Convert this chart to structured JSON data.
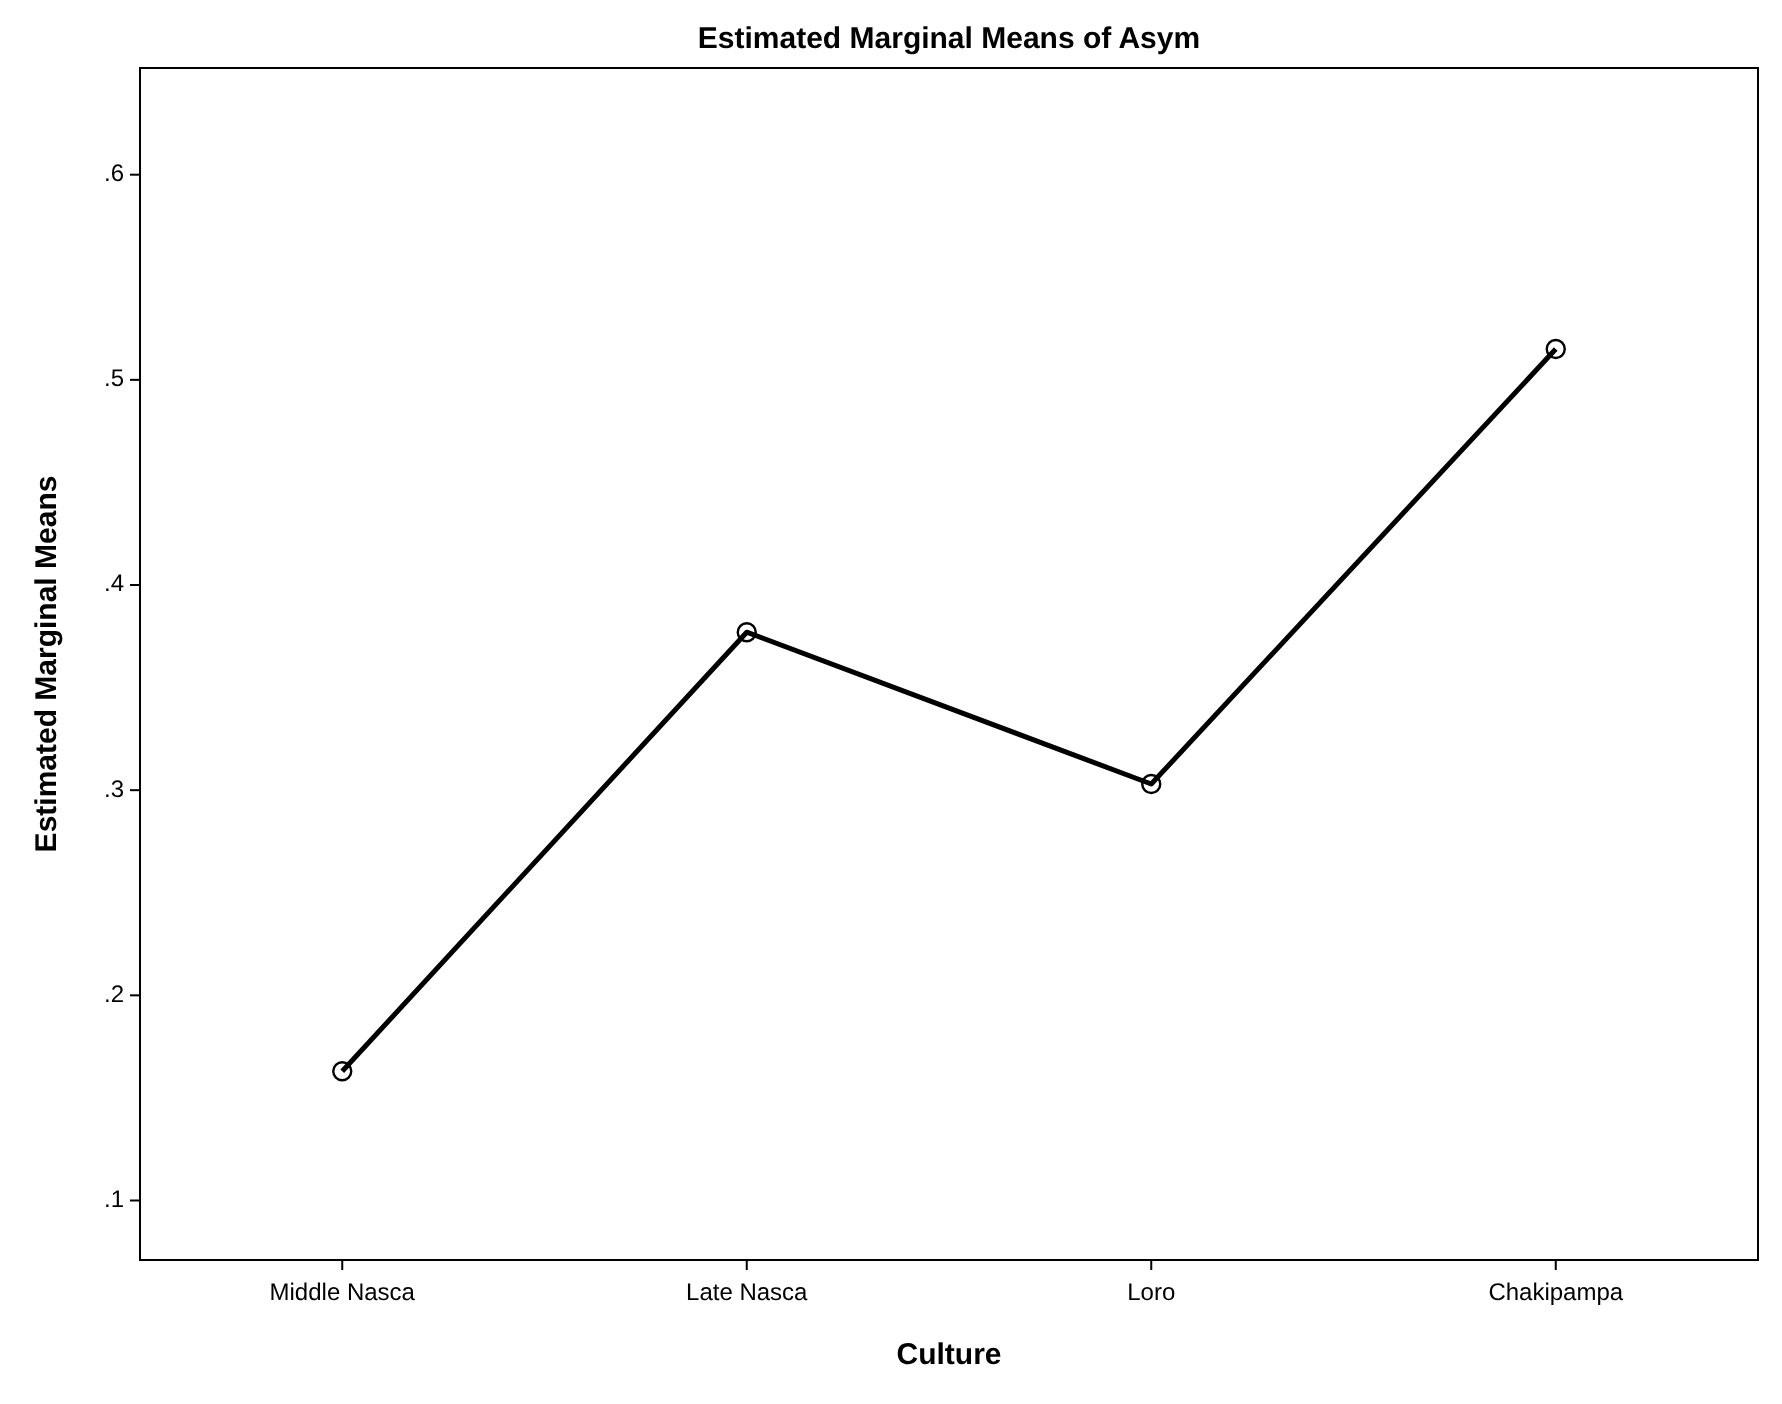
{
  "chart_data": {
    "type": "line",
    "title": "Estimated Marginal Means of Asym",
    "xlabel": "Culture",
    "ylabel": "Estimated Marginal Means",
    "categories": [
      "Middle Nasca",
      "Late Nasca",
      "Loro",
      "Chakipampa"
    ],
    "series": [
      {
        "color": "#000000",
        "values": [
          0.163,
          0.377,
          0.303,
          0.515
        ]
      }
    ],
    "ylim": [
      0.071,
      0.652
    ],
    "yticks": [
      {
        "value": 0.1,
        "label": ".1"
      },
      {
        "value": 0.2,
        "label": ".2"
      },
      {
        "value": 0.3,
        "label": ".3"
      },
      {
        "value": 0.4,
        "label": ".4"
      },
      {
        "value": 0.5,
        "label": ".5"
      },
      {
        "value": 0.6,
        "label": ".6"
      }
    ],
    "grid": false,
    "marker": "circle",
    "line_style": "solid"
  }
}
